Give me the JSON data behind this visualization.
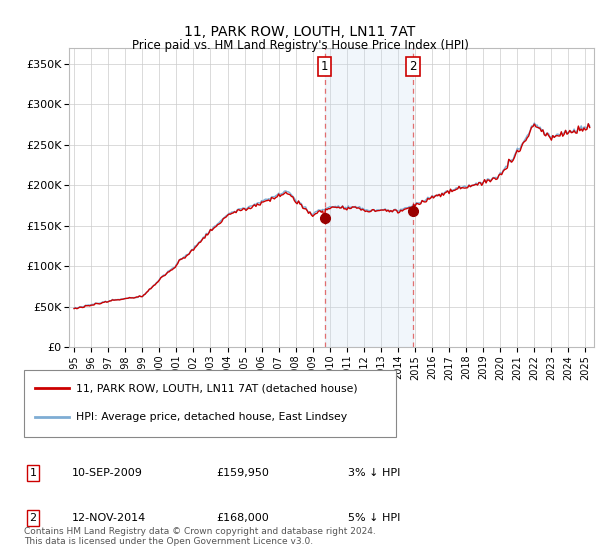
{
  "title": "11, PARK ROW, LOUTH, LN11 7AT",
  "subtitle": "Price paid vs. HM Land Registry's House Price Index (HPI)",
  "ylabel_ticks": [
    "£0",
    "£50K",
    "£100K",
    "£150K",
    "£200K",
    "£250K",
    "£300K",
    "£350K"
  ],
  "ytick_values": [
    0,
    50000,
    100000,
    150000,
    200000,
    250000,
    300000,
    350000
  ],
  "ylim": [
    0,
    370000
  ],
  "xlim_start": 1994.7,
  "xlim_end": 2025.5,
  "hpi_color": "#7eadd4",
  "price_color": "#cc0000",
  "shade_color": "#ddeeff",
  "marker1_x": 2009.69,
  "marker1_y": 159950,
  "marker1_label": "1",
  "marker1_date": "10-SEP-2009",
  "marker1_price": "£159,950",
  "marker1_pct": "3% ↓ HPI",
  "marker2_x": 2014.87,
  "marker2_y": 168000,
  "marker2_label": "2",
  "marker2_date": "12-NOV-2014",
  "marker2_price": "£168,000",
  "marker2_pct": "5% ↓ HPI",
  "legend_line1": "11, PARK ROW, LOUTH, LN11 7AT (detached house)",
  "legend_line2": "HPI: Average price, detached house, East Lindsey",
  "footer": "Contains HM Land Registry data © Crown copyright and database right 2024.\nThis data is licensed under the Open Government Licence v3.0.",
  "bg_color": "#ffffff",
  "plot_bg": "#ffffff",
  "grid_color": "#cccccc"
}
